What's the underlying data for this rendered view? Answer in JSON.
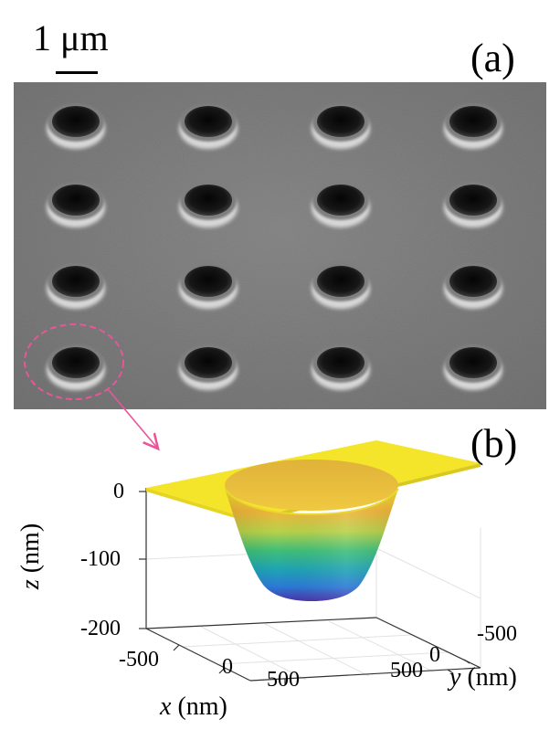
{
  "figure": {
    "scale_bar": {
      "label": "1 μm"
    },
    "panel_a": {
      "label": "(a)"
    },
    "panel_b": {
      "label": "(b)"
    },
    "colors": {
      "highlight": "#e8569a",
      "surface_top": "#f5e52a",
      "surface_bottom": "#4a32a8"
    }
  },
  "chart_data": {
    "type": "surface",
    "x_axis": {
      "var": "x",
      "unit": "(nm)",
      "ticks": [
        "-500",
        "0",
        "500"
      ],
      "range": [
        -700,
        700
      ]
    },
    "y_axis": {
      "var": "y",
      "unit": "(nm)",
      "ticks": [
        "-500",
        "0",
        "500"
      ],
      "range": [
        -700,
        700
      ]
    },
    "z_axis": {
      "var": "z",
      "unit": "(nm)",
      "ticks": [
        "0",
        "-100",
        "-200"
      ],
      "range": [
        -200,
        0
      ]
    },
    "surface": {
      "depth_nm": 160,
      "top_radius_nm": 450,
      "bottom_radius_nm": 200
    },
    "sem_array": {
      "rows": 4,
      "cols": 4
    }
  }
}
